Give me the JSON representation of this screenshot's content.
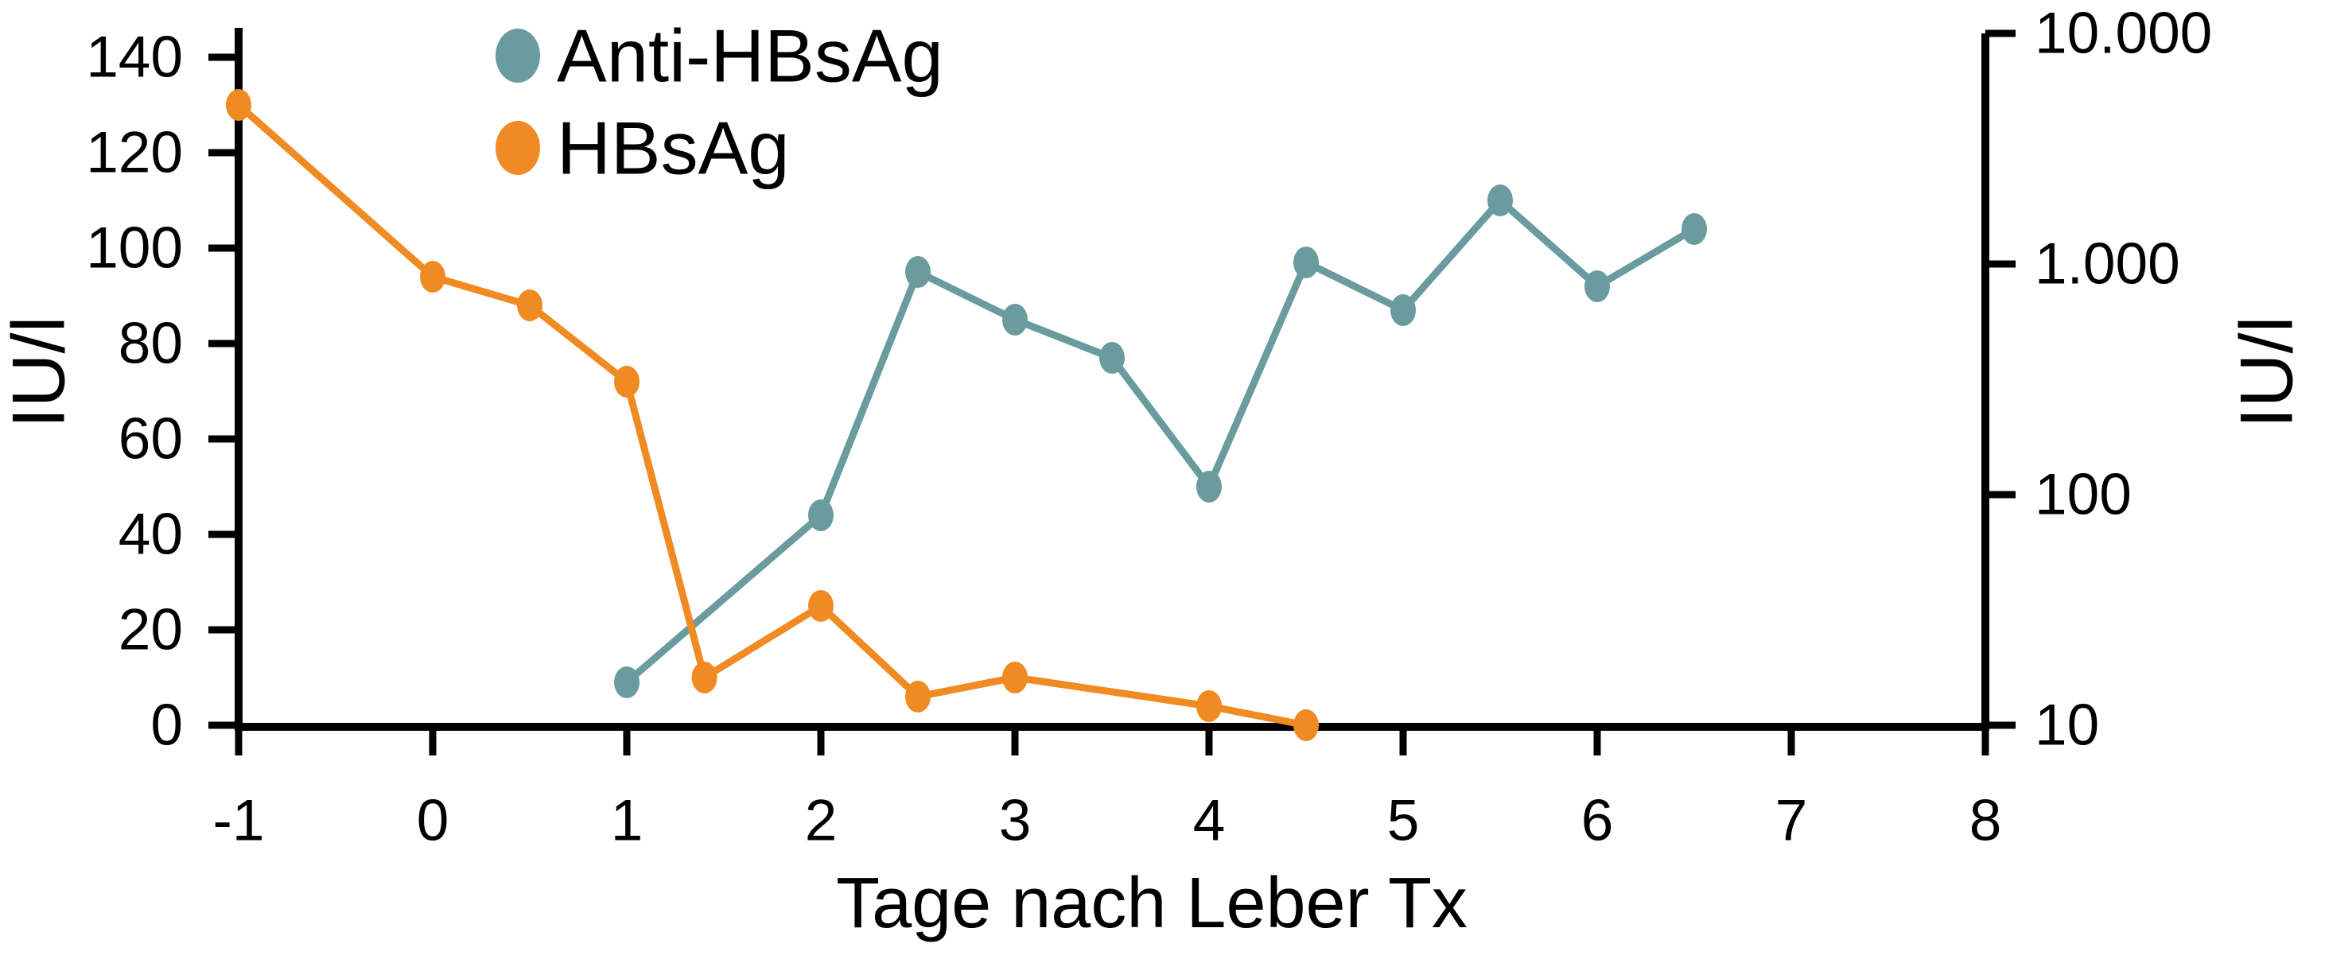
{
  "chart_data": {
    "type": "line",
    "title": "",
    "x_axis": {
      "label": "Tage nach Leber Tx",
      "ticks": [
        "-1",
        "0",
        "1",
        "2",
        "3",
        "4",
        "5",
        "6",
        "7",
        "8"
      ],
      "range": [
        -1,
        8
      ]
    },
    "left_axis": {
      "label": "IU/l",
      "scale": "linear",
      "ticks": [
        140,
        120,
        100,
        80,
        60,
        40,
        20,
        0
      ],
      "range": [
        0,
        140
      ]
    },
    "right_axis": {
      "label": "IU/l",
      "scale": "log",
      "range": [
        10,
        10000
      ],
      "ticks": [
        {
          "value": 10000,
          "label": "10.000"
        },
        {
          "value": 1000,
          "label": "1.000"
        },
        {
          "value": 100,
          "label": "100"
        },
        {
          "value": 10,
          "label": "10"
        }
      ]
    },
    "legend": {
      "position": "top-left-inside",
      "entries": [
        {
          "label": "Anti-HBsAg",
          "color": "#6A9B9E"
        },
        {
          "label": "HBsAg",
          "color": "#F08A23"
        }
      ]
    },
    "series": [
      {
        "name": "Anti-HBsAg",
        "color": "#6A9B9E",
        "axis": "left",
        "points": [
          [
            1,
            9
          ],
          [
            2,
            44
          ],
          [
            2.5,
            95
          ],
          [
            3,
            85
          ],
          [
            3.5,
            77
          ],
          [
            4,
            50
          ],
          [
            4.5,
            97
          ],
          [
            5,
            87
          ],
          [
            5.5,
            110
          ],
          [
            6,
            92
          ],
          [
            6.5,
            104
          ]
        ]
      },
      {
        "name": "HBsAg",
        "color": "#F08A23",
        "axis": "right",
        "points": [
          [
            -1,
            130
          ],
          [
            0,
            94
          ],
          [
            0.5,
            88
          ],
          [
            1,
            72
          ],
          [
            1.4,
            10
          ],
          [
            2,
            25
          ],
          [
            2.5,
            6
          ],
          [
            3,
            10
          ],
          [
            4,
            4
          ],
          [
            4.5,
            0
          ]
        ],
        "points_note": "y given in left-axis display units (IU/l 0-140 scale)",
        "values_right_axis_approx": [
          6000,
          1000,
          770,
          350,
          16,
          34,
          13,
          16,
          12,
          10
        ]
      }
    ],
    "colors": {
      "axis": "#000000",
      "background": "#FFFFFF"
    }
  }
}
